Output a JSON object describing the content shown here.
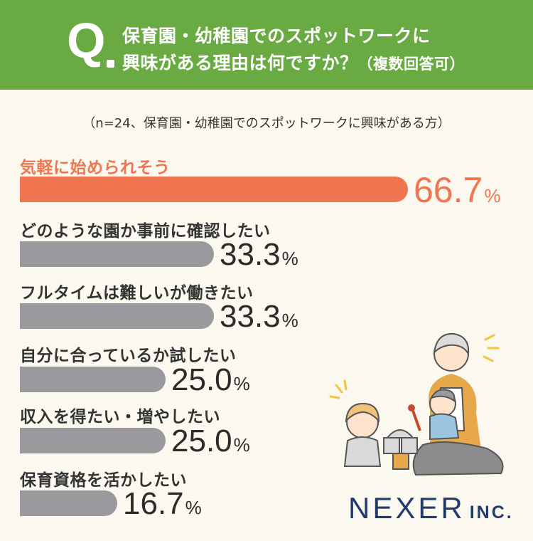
{
  "header": {
    "q_mark": "Q",
    "line1": "保育園・幼稚園でのスポットワークに",
    "line2": "興味がある理由は何ですか？",
    "line2_suffix": "（複数回答可）"
  },
  "note": "（n=24、保育園・幼稚園でのスポットワークに興味がある方）",
  "logo": {
    "main": "NEXER",
    "sub": "INC."
  },
  "colors": {
    "header": "#6aaa43",
    "highlight": "#ef7650",
    "bar": "#9a9a9e",
    "background": "#fbf9ef",
    "logo": "#253b6e"
  },
  "chart_data": {
    "type": "bar",
    "orientation": "horizontal",
    "unit": "%",
    "categories": [
      "気軽に始められそう",
      "どのような園か事前に確認したい",
      "フルタイムは難しいが働きたい",
      "自分に合っているか試したい",
      "収入を得たい・増やしたい",
      "保育資格を活かしたい"
    ],
    "values": [
      66.7,
      33.3,
      33.3,
      25.0,
      25.0,
      16.7
    ],
    "value_labels": [
      "66.7",
      "33.3",
      "33.3",
      "25.0",
      "25.0",
      "16.7"
    ],
    "xlim": [
      0,
      100
    ]
  }
}
